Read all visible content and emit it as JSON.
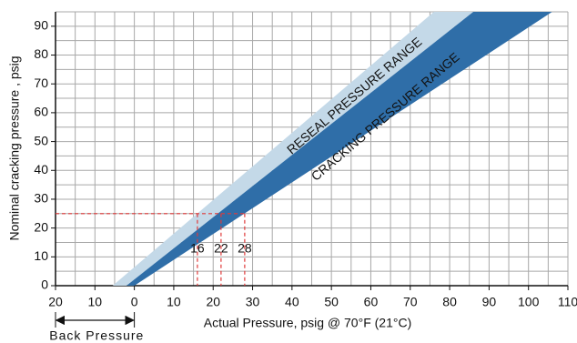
{
  "chart_data": {
    "type": "band",
    "x_label": "Actual Pressure, psig @ 70°F (21°C)",
    "y_label": "Nominal cracking pressure , psig",
    "xlim": [
      -20,
      110
    ],
    "ylim": [
      0,
      95
    ],
    "xticks": [
      {
        "value": -20,
        "label": "20"
      },
      {
        "value": -10,
        "label": "10"
      },
      0,
      10,
      20,
      30,
      40,
      50,
      60,
      70,
      80,
      90,
      100,
      110
    ],
    "yticks": [
      0,
      10,
      20,
      30,
      40,
      50,
      60,
      70,
      80,
      90
    ],
    "grid": true,
    "series": [
      {
        "name": "RESEAL PRESSURE RANGE",
        "color": "#c4d9e8",
        "text_color": "#1a1a1a",
        "x": [
          -5.5,
          76,
          86,
          -2
        ],
        "y": [
          0,
          95,
          95,
          0
        ]
      },
      {
        "name": "CRACKING PRESSURE RANGE",
        "color": "#2f6ea8",
        "text_color": "#ffffff",
        "x": [
          -2,
          86,
          106,
          0
        ],
        "y": [
          0,
          95,
          95,
          0
        ]
      }
    ],
    "reference": {
      "y": 25,
      "x": [
        16,
        22,
        28
      ],
      "color": "#e03a3a"
    },
    "back_pressure": {
      "label": "Back Pressure",
      "range": [
        -20,
        0
      ]
    }
  }
}
